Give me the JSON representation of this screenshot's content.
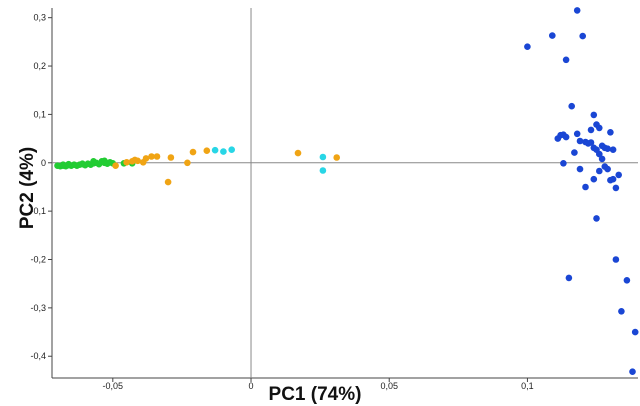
{
  "chart_data": {
    "type": "scatter",
    "xlabel": "PC1 (74%)",
    "ylabel": "PC2 (4%)",
    "xlim": [
      -0.072,
      0.14
    ],
    "ylim": [
      -0.445,
      0.32
    ],
    "x_ticks": [
      {
        "value": -0.05,
        "label": "-0,05"
      },
      {
        "value": 0,
        "label": "0"
      },
      {
        "value": 0.05,
        "label": "0,05"
      },
      {
        "value": 0.1,
        "label": "0,1"
      }
    ],
    "y_ticks": [
      {
        "value": 0.3,
        "label": "0,3"
      },
      {
        "value": 0.2,
        "label": "0,2"
      },
      {
        "value": 0.1,
        "label": "0,1"
      },
      {
        "value": 0,
        "label": "0"
      },
      {
        "value": -0.1,
        "label": "-0,1"
      },
      {
        "value": -0.2,
        "label": "-0,2"
      },
      {
        "value": -0.3,
        "label": "-0,3"
      },
      {
        "value": -0.4,
        "label": "-0,4"
      }
    ],
    "grid": false,
    "series": [
      {
        "color": "#22cc33",
        "points": [
          [
            -0.07,
            -0.006
          ],
          [
            -0.069,
            -0.007
          ],
          [
            -0.068,
            -0.006
          ],
          [
            -0.067,
            -0.007
          ],
          [
            -0.066,
            -0.005
          ],
          [
            -0.065,
            -0.006
          ],
          [
            -0.064,
            -0.004
          ],
          [
            -0.063,
            -0.006
          ],
          [
            -0.062,
            -0.004
          ],
          [
            -0.061,
            -0.003
          ],
          [
            -0.06,
            -0.005
          ],
          [
            -0.059,
            -0.002
          ],
          [
            -0.058,
            -0.004
          ],
          [
            -0.057,
            -0.001
          ],
          [
            -0.056,
            0.0
          ],
          [
            -0.055,
            -0.003
          ],
          [
            -0.054,
            0.003
          ],
          [
            -0.053,
            0.0
          ],
          [
            -0.052,
            -0.002
          ],
          [
            -0.051,
            0.001
          ],
          [
            -0.05,
            -0.001
          ],
          [
            -0.046,
            -0.001
          ],
          [
            -0.043,
            -0.001
          ],
          [
            -0.066,
            -0.003
          ],
          [
            -0.061,
            -0.002
          ],
          [
            -0.057,
            0.003
          ],
          [
            -0.053,
            0.004
          ],
          [
            -0.068,
            -0.004
          ]
        ]
      },
      {
        "color": "#f0a414",
        "points": [
          [
            -0.049,
            -0.006
          ],
          [
            -0.045,
            0.001
          ],
          [
            -0.043,
            0.003
          ],
          [
            -0.042,
            0.006
          ],
          [
            -0.041,
            0.004
          ],
          [
            -0.039,
            0.001
          ],
          [
            -0.038,
            0.009
          ],
          [
            -0.036,
            0.013
          ],
          [
            -0.034,
            0.013
          ],
          [
            -0.03,
            -0.04
          ],
          [
            -0.029,
            0.011
          ],
          [
            -0.023,
            0.0
          ],
          [
            -0.021,
            0.022
          ],
          [
            -0.016,
            0.025
          ],
          [
            0.017,
            0.02
          ],
          [
            0.031,
            0.011
          ]
        ]
      },
      {
        "color": "#28d6e6",
        "points": [
          [
            -0.013,
            0.026
          ],
          [
            -0.01,
            0.023
          ],
          [
            -0.007,
            0.027
          ],
          [
            0.026,
            0.012
          ],
          [
            0.026,
            -0.016
          ]
        ]
      },
      {
        "color": "#1a46d4",
        "points": [
          [
            0.1,
            0.24
          ],
          [
            0.109,
            0.263
          ],
          [
            0.114,
            0.213
          ],
          [
            0.118,
            0.315
          ],
          [
            0.12,
            0.262
          ],
          [
            0.116,
            0.117
          ],
          [
            0.111,
            0.05
          ],
          [
            0.112,
            0.057
          ],
          [
            0.113,
            0.058
          ],
          [
            0.114,
            0.053
          ],
          [
            0.113,
            -0.001
          ],
          [
            0.118,
            0.06
          ],
          [
            0.119,
            0.045
          ],
          [
            0.121,
            0.043
          ],
          [
            0.122,
            0.04
          ],
          [
            0.123,
            0.042
          ],
          [
            0.124,
            0.099
          ],
          [
            0.125,
            0.079
          ],
          [
            0.126,
            0.072
          ],
          [
            0.127,
            0.035
          ],
          [
            0.128,
            0.031
          ],
          [
            0.129,
            0.029
          ],
          [
            0.13,
            0.063
          ],
          [
            0.131,
            0.027
          ],
          [
            0.123,
            0.068
          ],
          [
            0.124,
            0.031
          ],
          [
            0.125,
            0.027
          ],
          [
            0.126,
            0.018
          ],
          [
            0.127,
            0.008
          ],
          [
            0.128,
            -0.008
          ],
          [
            0.129,
            -0.013
          ],
          [
            0.13,
            -0.036
          ],
          [
            0.131,
            -0.034
          ],
          [
            0.132,
            -0.052
          ],
          [
            0.133,
            -0.025
          ],
          [
            0.121,
            -0.05
          ],
          [
            0.124,
            -0.034
          ],
          [
            0.126,
            -0.017
          ],
          [
            0.119,
            -0.013
          ],
          [
            0.117,
            0.021
          ],
          [
            0.125,
            -0.115
          ],
          [
            0.115,
            -0.238
          ],
          [
            0.132,
            -0.2
          ],
          [
            0.136,
            -0.243
          ],
          [
            0.134,
            -0.307
          ],
          [
            0.139,
            -0.35
          ],
          [
            0.138,
            -0.432
          ]
        ]
      }
    ]
  }
}
